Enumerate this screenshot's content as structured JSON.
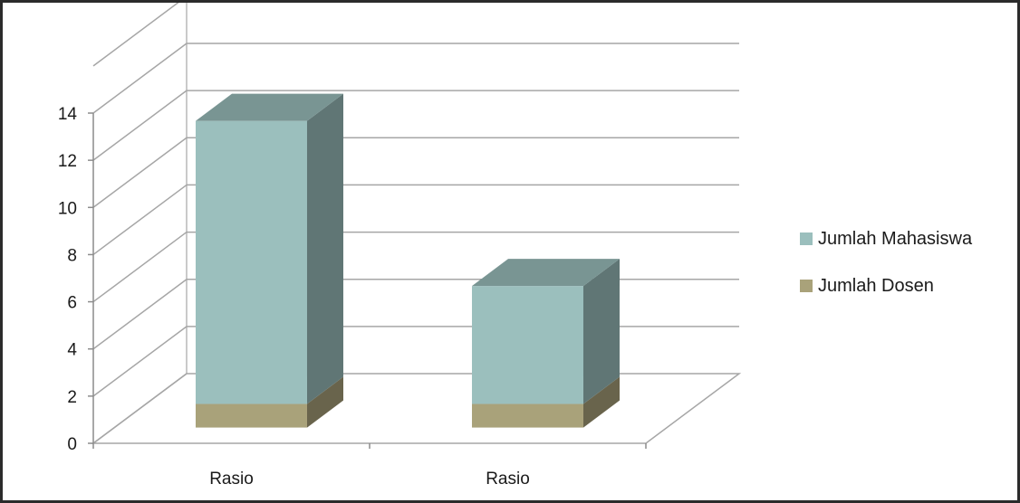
{
  "chart_data": {
    "type": "bar",
    "stacked": true,
    "three_d": true,
    "title": "",
    "xlabel": "",
    "ylabel": "",
    "categories": [
      "Rasio",
      "Rasio"
    ],
    "series": [
      {
        "name": "Jumlah Dosen",
        "values": [
          1,
          1
        ],
        "color": "#a9a27a"
      },
      {
        "name": "Jumlah Mahasiswa",
        "values": [
          12,
          5
        ],
        "color": "#9bbfbd"
      }
    ],
    "ylim": [
      0,
      14
    ],
    "yticks": [
      "0",
      "2",
      "4",
      "6",
      "8",
      "10",
      "12",
      "14"
    ],
    "grid": true,
    "legend_position": "right"
  }
}
